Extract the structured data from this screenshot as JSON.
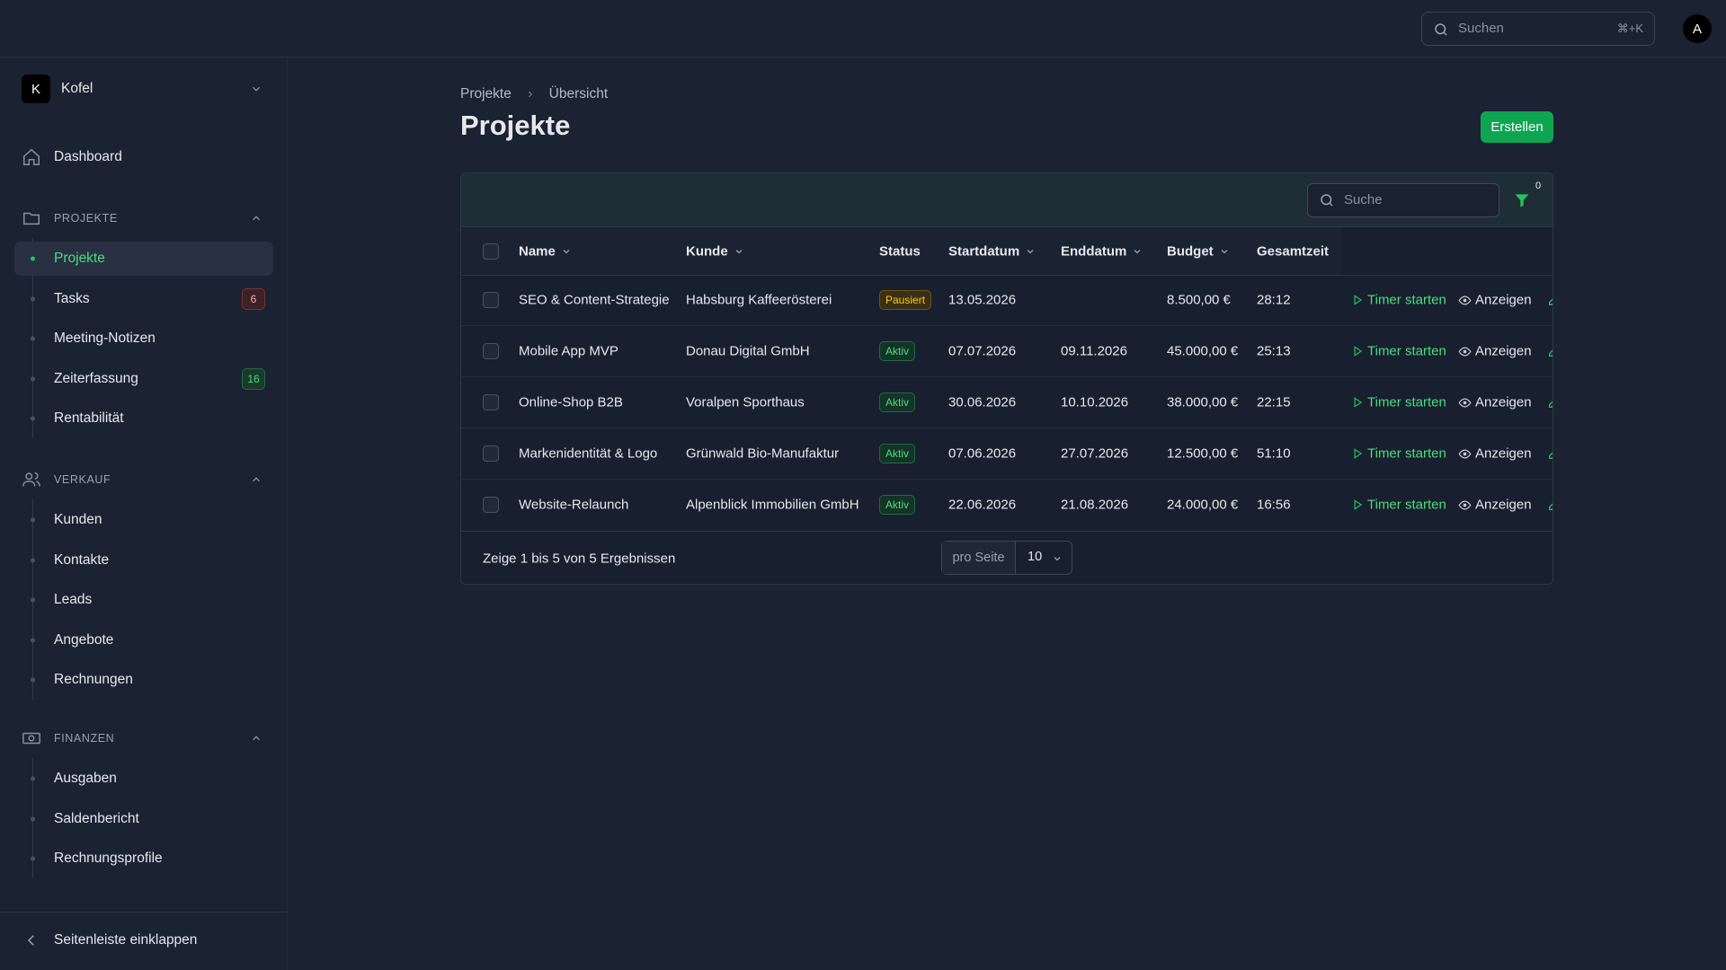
{
  "topbar": {
    "search_placeholder": "Suchen",
    "shortcut": "⌘+K",
    "avatar": "A"
  },
  "sidebar": {
    "workspace_initial": "K",
    "workspace": "Kofel",
    "dashboard": "Dashboard",
    "groups": [
      {
        "title": "PROJEKTE",
        "items": [
          {
            "label": "Projekte",
            "active": true
          },
          {
            "label": "Tasks",
            "badge": 6,
            "badge_color": "red"
          },
          {
            "label": "Meeting-Notizen"
          },
          {
            "label": "Zeiterfassung",
            "badge": 16,
            "badge_color": "green"
          },
          {
            "label": "Rentabilität"
          }
        ]
      },
      {
        "title": "VERKAUF",
        "items": [
          {
            "label": "Kunden"
          },
          {
            "label": "Kontakte"
          },
          {
            "label": "Leads"
          },
          {
            "label": "Angebote"
          },
          {
            "label": "Rechnungen"
          }
        ]
      },
      {
        "title": "FINANZEN",
        "items": [
          {
            "label": "Ausgaben"
          },
          {
            "label": "Saldenbericht"
          },
          {
            "label": "Rechnungsprofile"
          }
        ]
      }
    ],
    "collapse": "Seitenleiste einklappen"
  },
  "breadcrumb": [
    "Projekte",
    "Übersicht"
  ],
  "page_title": "Projekte",
  "create_button": "Erstellen",
  "table": {
    "search_placeholder": "Suche",
    "filter_count": 0,
    "columns": [
      "Name",
      "Kunde",
      "Status",
      "Startdatum",
      "Enddatum",
      "Budget",
      "Gesamtzeit"
    ],
    "sortable": [
      true,
      true,
      false,
      true,
      true,
      true,
      false
    ],
    "actions": [
      "Timer starten",
      "Anzeigen"
    ],
    "rows": [
      [
        "SEO & Content-Strategie",
        "Habsburg Kaffeerösterei",
        "Pausiert",
        "13.05.2026",
        null,
        "8.500,00 €",
        "28:12"
      ],
      [
        "Mobile App MVP",
        "Donau Digital GmbH",
        "Aktiv",
        "07.07.2026",
        "09.11.2026",
        "45.000,00 €",
        "25:13"
      ],
      [
        "Online-Shop B2B",
        "Voralpen Sporthaus",
        "Aktiv",
        "30.06.2026",
        "10.10.2026",
        "38.000,00 €",
        "22:15"
      ],
      [
        "Markenidentität & Logo",
        "Grünwald Bio-Manufaktur",
        "Aktiv",
        "07.06.2026",
        "27.07.2026",
        "12.500,00 €",
        "51:10"
      ],
      [
        "Website-Relaunch",
        "Alpenblick Immobilien GmbH",
        "Aktiv",
        "22.06.2026",
        "21.08.2026",
        "24.000,00 €",
        "16:56"
      ]
    ],
    "summary": "Zeige 1 bis 5 von 5 Ergebnissen",
    "per_page_label": "pro Seite",
    "per_page": 10
  }
}
